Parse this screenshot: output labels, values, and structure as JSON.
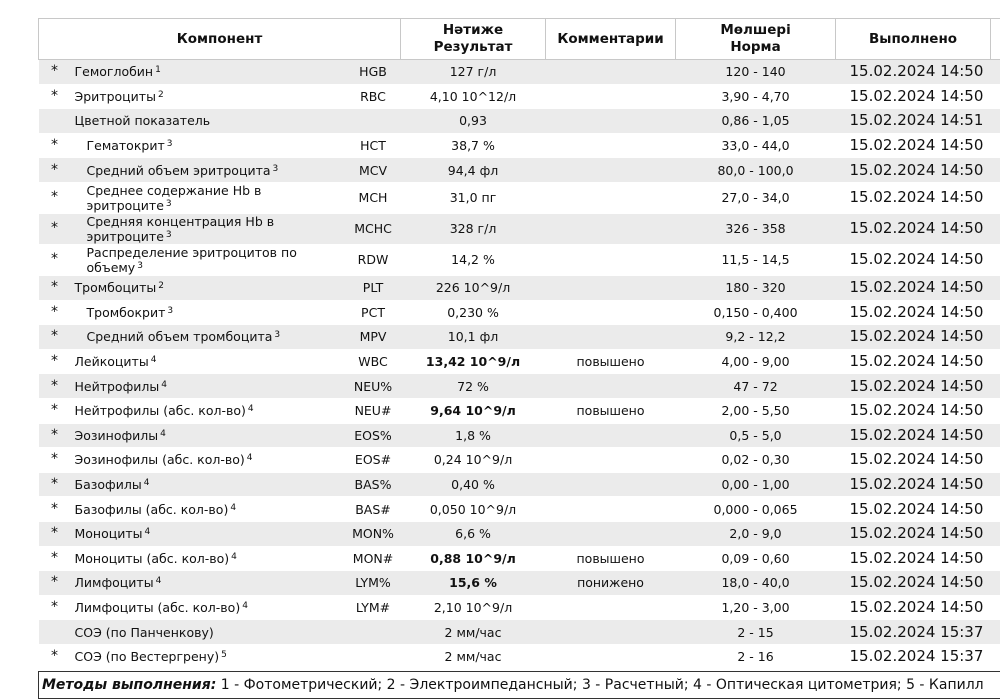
{
  "header": {
    "cells": [
      {
        "lines": [
          "Компонент"
        ]
      },
      {
        "lines": [
          "Нәтиже",
          "Результат"
        ]
      },
      {
        "lines": [
          "Комментарии"
        ]
      },
      {
        "lines": [
          "Мөлшері",
          "Норма"
        ]
      },
      {
        "lines": [
          "Выполнено"
        ]
      }
    ]
  },
  "table": {
    "rows": [
      {
        "mark": "*",
        "name": "Гемоглобин",
        "note": "1",
        "code": "HGB",
        "result": "127 г/л",
        "norm": "120 - 140",
        "done": "15.02.2024 14:50"
      },
      {
        "mark": "*",
        "name": "Эритроциты",
        "note": "2",
        "code": "RBC",
        "result": "4,10 10^12/л",
        "norm": "3,90 - 4,70",
        "done": "15.02.2024 14:50"
      },
      {
        "name": "Цветной показатель",
        "result": "0,93",
        "norm": "0,86 - 1,05",
        "done": "15.02.2024 14:51"
      },
      {
        "mark": "*",
        "name": "Гематокрит",
        "note": "3",
        "code": "HCT",
        "result": "38,7 %",
        "norm": "33,0 - 44,0",
        "done": "15.02.2024 14:50"
      },
      {
        "mark": "*",
        "name": "Средний объем эритроцита",
        "note": "3",
        "code": "MCV",
        "result": "94,4 фл",
        "norm": "80,0 - 100,0",
        "done": "15.02.2024 14:50"
      },
      {
        "mark": "*",
        "name": "Среднее содержание Hb в эритроците",
        "note": "3",
        "code": "MCH",
        "result": "31,0 пг",
        "norm": "27,0 - 34,0",
        "done": "15.02.2024 14:50"
      },
      {
        "mark": "*",
        "name": "Средняя концентрация Hb в эритроците",
        "note": "3",
        "code": "MCHC",
        "result": "328 г/л",
        "norm": "326 - 358",
        "done": "15.02.2024 14:50"
      },
      {
        "mark": "*",
        "name": "Распределение эритроцитов по объему",
        "note": "3",
        "code": "RDW",
        "result": "14,2 %",
        "norm": "11,5 - 14,5",
        "done": "15.02.2024 14:50"
      },
      {
        "mark": "*",
        "name": "Тромбоциты",
        "note": "2",
        "code": "PLT",
        "result": "226 10^9/л",
        "norm": "180 - 320",
        "done": "15.02.2024 14:50"
      },
      {
        "mark": "*",
        "name": "Тромбокрит",
        "note": "3",
        "code": "PCT",
        "result": "0,230 %",
        "norm": "0,150 - 0,400",
        "done": "15.02.2024 14:50"
      },
      {
        "mark": "*",
        "name": "Средний объем тромбоцита",
        "note": "3",
        "code": "MPV",
        "result": "10,1 фл",
        "norm": "9,2 - 12,2",
        "done": "15.02.2024 14:50"
      },
      {
        "mark": "*",
        "name": "Лейкоциты",
        "note": "4",
        "code": "WBC",
        "result": "13,42 10^9/л",
        "comment": "повышено",
        "norm": "4,00 - 9,00",
        "done": "15.02.2024 14:50"
      },
      {
        "mark": "*",
        "name": "Нейтрофилы",
        "note": "4",
        "code": "NEU%",
        "result": "72 %",
        "norm": "47 - 72",
        "done": "15.02.2024 14:50"
      },
      {
        "mark": "*",
        "name": "Нейтрофилы (абс. кол-во)",
        "note": "4",
        "code": "NEU#",
        "result": "9,64 10^9/л",
        "comment": "повышено",
        "norm": "2,00 - 5,50",
        "done": "15.02.2024 14:50"
      },
      {
        "mark": "*",
        "name": "Эозинофилы",
        "note": "4",
        "code": "EOS%",
        "result": "1,8 %",
        "norm": "0,5 - 5,0",
        "done": "15.02.2024 14:50"
      },
      {
        "mark": "*",
        "name": "Эозинофилы (абс. кол-во)",
        "note": "4",
        "code": "EOS#",
        "result": "0,24 10^9/л",
        "norm": "0,02 - 0,30",
        "done": "15.02.2024 14:50"
      },
      {
        "mark": "*",
        "name": "Базофилы",
        "note": "4",
        "code": "BAS%",
        "result": "0,40 %",
        "norm": "0,00 - 1,00",
        "done": "15.02.2024 14:50"
      },
      {
        "mark": "*",
        "name": "Базофилы (абс. кол-во)",
        "note": "4",
        "code": "BAS#",
        "result": "0,050 10^9/л",
        "norm": "0,000 - 0,065",
        "done": "15.02.2024 14:50"
      },
      {
        "mark": "*",
        "name": "Моноциты",
        "note": "4",
        "code": "MON%",
        "result": "6,6 %",
        "norm": "2,0 - 9,0",
        "done": "15.02.2024 14:50"
      },
      {
        "mark": "*",
        "name": "Моноциты (абс. кол-во)",
        "note": "4",
        "code": "MON#",
        "result": "0,88 10^9/л",
        "comment": "повышено",
        "norm": "0,09 - 0,60",
        "done": "15.02.2024 14:50"
      },
      {
        "mark": "*",
        "name": "Лимфоциты",
        "note": "4",
        "code": "LYM%",
        "result": "15,6 %",
        "comment": "понижено",
        "norm": "18,0 - 40,0",
        "done": "15.02.2024 14:50"
      },
      {
        "mark": "*",
        "name": "Лимфоциты (абс. кол-во)",
        "note": "4",
        "code": "LYM#",
        "result": "2,10 10^9/л",
        "norm": "1,20 - 3,00",
        "done": "15.02.2024 14:50"
      },
      {
        "name": "СОЭ (по Панченкову)",
        "result": "2 мм/час",
        "norm": "2 - 15",
        "done": "15.02.2024 15:37"
      },
      {
        "mark": "*",
        "name": "СОЭ (по Вестергрену)",
        "note": "5",
        "result": "2 мм/час",
        "norm": "2 - 16",
        "done": "15.02.2024 15:37"
      }
    ]
  },
  "footer": {
    "label": "Методы выполнения:",
    "text": "1 - Фотометрический; 2 - Электроимпедансный; 3 - Расчетный; 4 - Оптическая цитометрия; 5 - Капилл"
  }
}
